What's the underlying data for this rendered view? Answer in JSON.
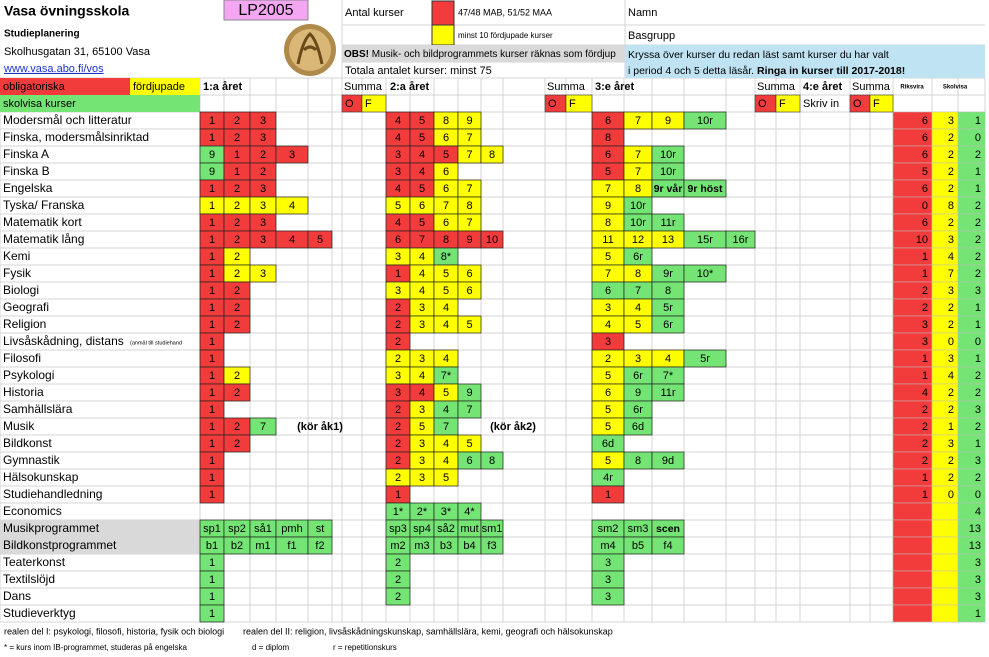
{
  "header": {
    "school": "Vasa övningsskola",
    "code": "LP2005",
    "subtitle": "Studieplanering",
    "address": "Skolhusgatan 31, 65100 Vasa",
    "url": "www.vasa.abo.fi/vos",
    "count_label": "Antal kurser",
    "red_note": "47/48 MAB, 51/52 MAA",
    "yellow_note": "minst 10 fördjupade kurser",
    "obs_label": "OBS!",
    "obs_text": " Musik- och bildprogrammets kurser räknas som fördjup",
    "total_note": "Totala antalet kurser: minst 75",
    "name_label": "Namn",
    "group_label": "Basgrupp",
    "instructions_1": "Kryssa över kurser du redan läst samt kurser du har valt",
    "instructions_2": "i period 4 och 5 detta läsår. ",
    "instructions_bold": "Ringa in kurser till 2017-2018!"
  },
  "legend": {
    "mandatory": "obligatoriska",
    "advanced": "fördjupade",
    "school": "skolvisa kurser"
  },
  "columns": {
    "year1": "1:a året",
    "year2": "2:a året",
    "year3": "3:e året",
    "year4": "4:e året",
    "sum": "Summa",
    "o": "O",
    "f": "F",
    "write": "Skriv in",
    "national": "Riksvira",
    "schoolwide": "Skolvisa"
  },
  "palette": {
    "r": "#f23c3c",
    "y": "#ffff00",
    "g": "#74e574",
    "gray": "#d9d9d9",
    "pink": "#f5a6f2",
    "blue": "#bfe3f2"
  },
  "rows": [
    {
      "name": "Modersmål och litteratur",
      "y1": [
        [
          "1",
          "r"
        ],
        [
          "2",
          "r"
        ],
        [
          "3",
          "r"
        ]
      ],
      "y2": [
        [
          "4",
          "r"
        ],
        [
          "5",
          "r"
        ],
        [
          "8",
          "y"
        ],
        [
          "9",
          "y"
        ]
      ],
      "y3": [
        [
          "6",
          "r"
        ],
        [
          "7",
          "y"
        ],
        [
          "9",
          "y"
        ],
        [
          "10r",
          "g"
        ]
      ],
      "totals": [
        6,
        3,
        1
      ]
    },
    {
      "name": "Finska, modersmålsinriktad",
      "y1": [
        [
          "1",
          "r"
        ],
        [
          "2",
          "r"
        ],
        [
          "3",
          "r"
        ]
      ],
      "y2": [
        [
          "4",
          "r"
        ],
        [
          "5",
          "r"
        ],
        [
          "6",
          "y"
        ],
        [
          "7",
          "y"
        ]
      ],
      "y3": [
        [
          "8",
          "r"
        ]
      ],
      "totals": [
        6,
        2,
        0
      ]
    },
    {
      "name": "Finska A",
      "y1": [
        [
          "9",
          "g"
        ],
        [
          "1",
          "r"
        ],
        [
          "2",
          "r"
        ],
        [
          "3",
          "r"
        ]
      ],
      "y2": [
        [
          "3",
          "r"
        ],
        [
          "4",
          "r"
        ],
        [
          "5",
          "r"
        ],
        [
          "7",
          "y"
        ],
        [
          "8",
          "y"
        ]
      ],
      "y3": [
        [
          "6",
          "r"
        ],
        [
          "7",
          "y"
        ],
        [
          "10r",
          "g"
        ]
      ],
      "totals": [
        6,
        2,
        2
      ]
    },
    {
      "name": "Finska B",
      "y1": [
        [
          "9",
          "g"
        ],
        [
          "1",
          "r"
        ],
        [
          "2",
          "r"
        ]
      ],
      "y2": [
        [
          "3",
          "r"
        ],
        [
          "4",
          "r"
        ],
        [
          "6",
          "y"
        ]
      ],
      "y3": [
        [
          "5",
          "r"
        ],
        [
          "7",
          "y"
        ],
        [
          "10r",
          "g"
        ]
      ],
      "totals": [
        5,
        2,
        1
      ]
    },
    {
      "name": "Engelska",
      "y1": [
        [
          "1",
          "r"
        ],
        [
          "2",
          "r"
        ],
        [
          "3",
          "r"
        ]
      ],
      "y2": [
        [
          "4",
          "r"
        ],
        [
          "5",
          "r"
        ],
        [
          "6",
          "y"
        ],
        [
          "7",
          "y"
        ]
      ],
      "y3": [
        [
          "7",
          "y"
        ],
        [
          "8",
          "y"
        ],
        [
          "9r vår",
          "g"
        ],
        [
          "9r höst",
          "g"
        ]
      ],
      "totals": [
        6,
        2,
        1
      ]
    },
    {
      "name": "Tyska/ Franska",
      "y1": [
        [
          "1",
          "y"
        ],
        [
          "2",
          "y"
        ],
        [
          "3",
          "y"
        ],
        [
          "4",
          "y"
        ]
      ],
      "y2": [
        [
          "5",
          "y"
        ],
        [
          "6",
          "y"
        ],
        [
          "7",
          "y"
        ],
        [
          "8",
          "y"
        ]
      ],
      "y3": [
        [
          "9",
          "y"
        ],
        [
          "10r",
          "g"
        ]
      ],
      "totals": [
        0,
        8,
        2
      ]
    },
    {
      "name": "Matematik kort",
      "y1": [
        [
          "1",
          "r"
        ],
        [
          "2",
          "r"
        ],
        [
          "3",
          "r"
        ]
      ],
      "y2": [
        [
          "4",
          "r"
        ],
        [
          "5",
          "r"
        ],
        [
          "6",
          "y"
        ],
        [
          "7",
          "y"
        ]
      ],
      "y3": [
        [
          "8",
          "y"
        ],
        [
          "10r",
          "g"
        ],
        [
          "11r",
          "g"
        ]
      ],
      "totals": [
        6,
        2,
        2
      ]
    },
    {
      "name": "Matematik lång",
      "y1": [
        [
          "1",
          "r"
        ],
        [
          "2",
          "r"
        ],
        [
          "3",
          "r"
        ],
        [
          "4",
          "r"
        ],
        [
          "5",
          "r"
        ]
      ],
      "y2": [
        [
          "6",
          "r"
        ],
        [
          "7",
          "r"
        ],
        [
          "8",
          "r"
        ],
        [
          "9",
          "r"
        ],
        [
          "10",
          "r"
        ]
      ],
      "y3": [
        [
          "11",
          "y"
        ],
        [
          "12",
          "y"
        ],
        [
          "13",
          "y"
        ],
        [
          "15r",
          "g"
        ],
        [
          "16r",
          "g"
        ]
      ],
      "totals": [
        10,
        3,
        2
      ]
    },
    {
      "name": "Kemi",
      "y1": [
        [
          "1",
          "r"
        ],
        [
          "2",
          "y"
        ]
      ],
      "y2": [
        [
          "3",
          "y"
        ],
        [
          "4",
          "y"
        ],
        [
          "8*",
          "g"
        ]
      ],
      "y3": [
        [
          "5",
          "y"
        ],
        [
          "6r",
          "g"
        ]
      ],
      "totals": [
        1,
        4,
        2
      ]
    },
    {
      "name": "Fysik",
      "y1": [
        [
          "1",
          "r"
        ],
        [
          "2",
          "y"
        ],
        [
          "3",
          "y"
        ]
      ],
      "y2": [
        [
          "1",
          "r"
        ],
        [
          "4",
          "y"
        ],
        [
          "5",
          "y"
        ],
        [
          "6",
          "y"
        ]
      ],
      "y3": [
        [
          "7",
          "y"
        ],
        [
          "8",
          "y"
        ],
        [
          "9r",
          "g"
        ],
        [
          "10*",
          "g"
        ]
      ],
      "totals": [
        1,
        7,
        2
      ]
    },
    {
      "name": "Biologi",
      "y1": [
        [
          "1",
          "r"
        ],
        [
          "2",
          "r"
        ]
      ],
      "y2": [
        [
          "3",
          "y"
        ],
        [
          "4",
          "y"
        ],
        [
          "5",
          "y"
        ],
        [
          "6",
          "y"
        ]
      ],
      "y3": [
        [
          "6",
          "g"
        ],
        [
          "7",
          "g"
        ],
        [
          "8",
          "g"
        ]
      ],
      "totals": [
        2,
        3,
        3
      ]
    },
    {
      "name": "Geografi",
      "y1": [
        [
          "1",
          "r"
        ],
        [
          "2",
          "r"
        ]
      ],
      "y2": [
        [
          "2",
          "r"
        ],
        [
          "3",
          "y"
        ],
        [
          "4",
          "y"
        ]
      ],
      "y3": [
        [
          "3",
          "y"
        ],
        [
          "4",
          "y"
        ],
        [
          "5r",
          "g"
        ]
      ],
      "totals": [
        2,
        2,
        1
      ]
    },
    {
      "name": "Religion",
      "y1": [
        [
          "1",
          "r"
        ],
        [
          "2",
          "r"
        ]
      ],
      "y2": [
        [
          "2",
          "r"
        ],
        [
          "3",
          "y"
        ],
        [
          "4",
          "y"
        ],
        [
          "5",
          "y"
        ]
      ],
      "y3": [
        [
          "4",
          "y"
        ],
        [
          "5",
          "y"
        ],
        [
          "6r",
          "g"
        ]
      ],
      "totals": [
        3,
        2,
        1
      ]
    },
    {
      "name": "Livsåskådning, distans",
      "name_note": "(anmäl till studiehand",
      "y1": [
        [
          "1",
          "r"
        ]
      ],
      "y2": [
        [
          "2",
          "r"
        ]
      ],
      "y3": [
        [
          "3",
          "r"
        ]
      ],
      "totals": [
        3,
        0,
        0
      ]
    },
    {
      "name": "Filosofi",
      "y1": [
        [
          "1",
          "r"
        ]
      ],
      "y2": [
        [
          "2",
          "y"
        ],
        [
          "3",
          "y"
        ],
        [
          "4",
          "y"
        ]
      ],
      "y3": [
        [
          "2",
          "y"
        ],
        [
          "3",
          "y"
        ],
        [
          "4",
          "y"
        ],
        [
          "5r",
          "g"
        ]
      ],
      "totals": [
        1,
        3,
        1
      ]
    },
    {
      "name": "Psykologi",
      "y1": [
        [
          "1",
          "r"
        ],
        [
          "2",
          "y"
        ]
      ],
      "y2": [
        [
          "3",
          "y"
        ],
        [
          "4",
          "y"
        ],
        [
          "7*",
          "g"
        ]
      ],
      "y3": [
        [
          "5",
          "y"
        ],
        [
          "6r",
          "g"
        ],
        [
          "7*",
          "g"
        ]
      ],
      "totals": [
        1,
        4,
        2
      ]
    },
    {
      "name": "Historia",
      "y1": [
        [
          "1",
          "r"
        ],
        [
          "2",
          "r"
        ]
      ],
      "y2": [
        [
          "3",
          "r"
        ],
        [
          "4",
          "r"
        ],
        [
          "5",
          "y"
        ],
        [
          "9",
          "g"
        ]
      ],
      "y3": [
        [
          "6",
          "y"
        ],
        [
          "9",
          "g"
        ],
        [
          "11r",
          "g"
        ]
      ],
      "totals": [
        4,
        2,
        2
      ]
    },
    {
      "name": "Samhällslära",
      "y1": [
        [
          "1",
          "r"
        ]
      ],
      "y2": [
        [
          "2",
          "r"
        ],
        [
          "3",
          "y"
        ],
        [
          "4",
          "g"
        ],
        [
          "7",
          "g"
        ]
      ],
      "y3": [
        [
          "5",
          "y"
        ],
        [
          "6r",
          "g"
        ]
      ],
      "totals": [
        2,
        2,
        3
      ]
    },
    {
      "name": "Musik",
      "y1": [
        [
          "1",
          "r"
        ],
        [
          "2",
          "r"
        ],
        [
          "7",
          "g"
        ]
      ],
      "y2": [
        [
          "2",
          "r"
        ],
        [
          "5",
          "y"
        ],
        [
          "7",
          "g"
        ]
      ],
      "y3": [
        [
          "5",
          "y"
        ],
        [
          "6d",
          "g"
        ]
      ],
      "notes": [
        "(kör åk1)",
        "(kör åk2)"
      ],
      "totals": [
        2,
        1,
        2
      ]
    },
    {
      "name": "Bildkonst",
      "y1": [
        [
          "1",
          "r"
        ],
        [
          "2",
          "r"
        ]
      ],
      "y2": [
        [
          "2",
          "r"
        ],
        [
          "3",
          "y"
        ],
        [
          "4",
          "y"
        ],
        [
          "5",
          "y"
        ]
      ],
      "y3": [
        [
          "6d",
          "g"
        ]
      ],
      "totals": [
        2,
        3,
        1
      ]
    },
    {
      "name": "Gymnastik",
      "y1": [
        [
          "1",
          "r"
        ]
      ],
      "y2": [
        [
          "2",
          "r"
        ],
        [
          "3",
          "y"
        ],
        [
          "4",
          "y"
        ],
        [
          "6",
          "g"
        ],
        [
          "8",
          "g"
        ]
      ],
      "y3": [
        [
          "5",
          "y"
        ],
        [
          "8",
          "g"
        ],
        [
          "9d",
          "g"
        ]
      ],
      "totals": [
        2,
        2,
        3
      ]
    },
    {
      "name": "Hälsokunskap",
      "y1": [
        [
          "1",
          "r"
        ]
      ],
      "y2": [
        [
          "2",
          "y"
        ],
        [
          "3",
          "y"
        ],
        [
          "5",
          "y"
        ]
      ],
      "y3": [
        [
          "4r",
          "g"
        ]
      ],
      "totals": [
        1,
        2,
        2
      ]
    },
    {
      "name": "Studiehandledning",
      "y1": [
        [
          "1",
          "r"
        ]
      ],
      "y2": [
        [
          "1",
          "r"
        ]
      ],
      "y3": [
        [
          "1",
          "r"
        ]
      ],
      "totals": [
        1,
        0,
        0
      ]
    },
    {
      "name": "Economics",
      "y1": [],
      "y2": [
        [
          "1*",
          "g"
        ],
        [
          "2*",
          "g"
        ],
        [
          "3*",
          "g"
        ],
        [
          "4*",
          "g"
        ]
      ],
      "y3": [],
      "totals": [
        null,
        null,
        4
      ]
    },
    {
      "name": "Musikprogrammet",
      "program": true,
      "y1": [
        [
          "sp1",
          "g"
        ],
        [
          "sp2",
          "g"
        ],
        [
          "så1",
          "g"
        ],
        [
          "pmh",
          "g"
        ],
        [
          "st",
          "g"
        ]
      ],
      "y2": [
        [
          "sp3",
          "g"
        ],
        [
          "sp4",
          "g"
        ],
        [
          "så2",
          "g"
        ],
        [
          "mut",
          "g"
        ],
        [
          "sm1",
          "g"
        ]
      ],
      "y3": [
        [
          "sm2",
          "g"
        ],
        [
          "sm3",
          "g"
        ],
        [
          "scen",
          "g"
        ]
      ],
      "totals": [
        null,
        null,
        13
      ]
    },
    {
      "name": "Bildkonstprogrammet",
      "program": true,
      "y1": [
        [
          "b1",
          "g"
        ],
        [
          "b2",
          "g"
        ],
        [
          "m1",
          "g"
        ],
        [
          "f1",
          "g"
        ],
        [
          "f2",
          "g"
        ]
      ],
      "y2": [
        [
          "m2",
          "g"
        ],
        [
          "m3",
          "g"
        ],
        [
          "b3",
          "g"
        ],
        [
          "b4",
          "g"
        ],
        [
          "f3",
          "g"
        ]
      ],
      "y3": [
        [
          "m4",
          "g"
        ],
        [
          "b5",
          "g"
        ],
        [
          "f4",
          "g"
        ]
      ],
      "totals": [
        null,
        null,
        13
      ]
    },
    {
      "name": "Teaterkonst",
      "y1": [
        [
          "1",
          "g"
        ]
      ],
      "y2": [
        [
          "2",
          "g"
        ]
      ],
      "y3": [
        [
          "3",
          "g"
        ]
      ],
      "totals": [
        null,
        null,
        3
      ]
    },
    {
      "name": "Textilslöjd",
      "y1": [
        [
          "1",
          "g"
        ]
      ],
      "y2": [
        [
          "2",
          "g"
        ]
      ],
      "y3": [
        [
          "3",
          "g"
        ]
      ],
      "totals": [
        null,
        null,
        3
      ]
    },
    {
      "name": "Dans",
      "y1": [
        [
          "1",
          "g"
        ]
      ],
      "y2": [
        [
          "2",
          "g"
        ]
      ],
      "y3": [
        [
          "3",
          "g"
        ]
      ],
      "totals": [
        null,
        null,
        3
      ]
    },
    {
      "name": "Studieverktyg",
      "y1": [
        [
          "1",
          "g"
        ]
      ],
      "y2": [],
      "y3": [],
      "totals": [
        null,
        null,
        1
      ]
    }
  ],
  "footer": {
    "real_1": "realen del I: psykologi, filosofi, historia, fysik och biologi",
    "real_2": "realen del II: religion, livsåskådningskunskap, samhällslära, kemi, geografi och hälsokunskap",
    "ib": "*  =  kurs inom IB-programmet, studeras på engelska",
    "diploma": "d = diplom",
    "repeat": "r = repetitionskurs"
  }
}
